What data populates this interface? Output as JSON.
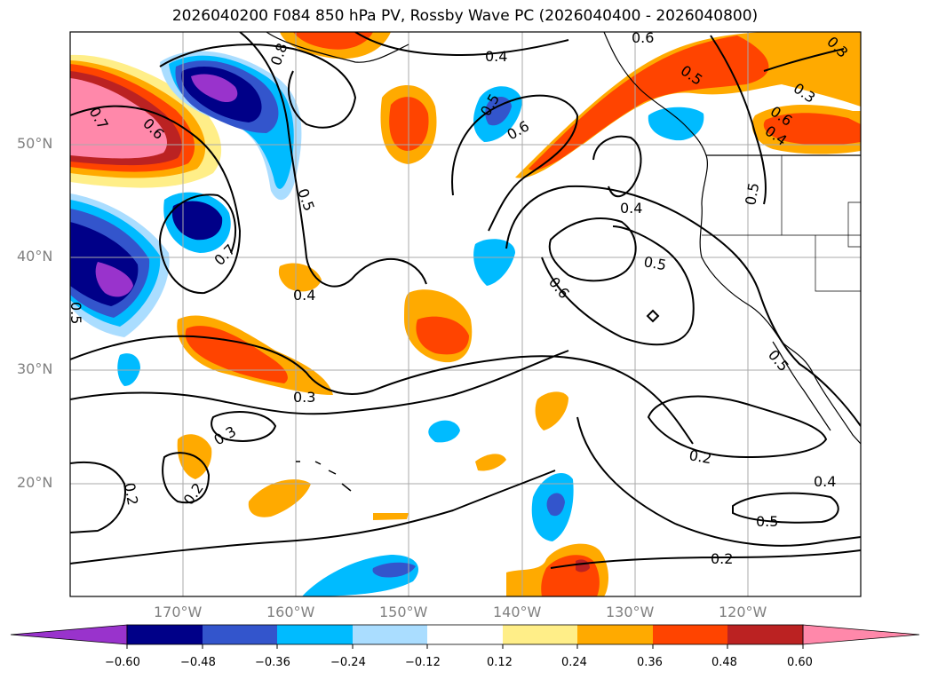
{
  "title": "2026040200 F084 850 hPa PV, Rossby Wave PC (2026040400 - 2026040800)",
  "map": {
    "lat_labels": [
      "50°N",
      "40°N",
      "30°N",
      "20°N"
    ],
    "lon_labels": [
      "170°W",
      "160°W",
      "150°W",
      "140°W",
      "130°W",
      "120°W"
    ],
    "contour_labels": [
      "0.4",
      "0.6",
      "0.6",
      "0.5",
      "0.3",
      "0.7",
      "0.6",
      "0.8",
      "0.5",
      "0.7",
      "0.4",
      "0.6",
      "0.5",
      "0.4",
      "0.5",
      "0.6",
      "0.5",
      "0.4",
      "0.3",
      "0.3",
      "0.3",
      "0.2",
      "0.2",
      "0.2",
      "0.4",
      "0.5",
      "0.2",
      "0.5",
      "0.5"
    ]
  },
  "colorbar": {
    "tick_labels": [
      "−0.60",
      "−0.48",
      "−0.36",
      "−0.24",
      "−0.12",
      "0.12",
      "0.24",
      "0.36",
      "0.48",
      "0.60"
    ],
    "colors": [
      "#9933cc",
      "#000088",
      "#3355cc",
      "#00bbff",
      "#aaddff",
      "#ffffff",
      "#ffee88",
      "#ffaa00",
      "#ff4400",
      "#bb2222",
      "#ff88aa"
    ]
  }
}
